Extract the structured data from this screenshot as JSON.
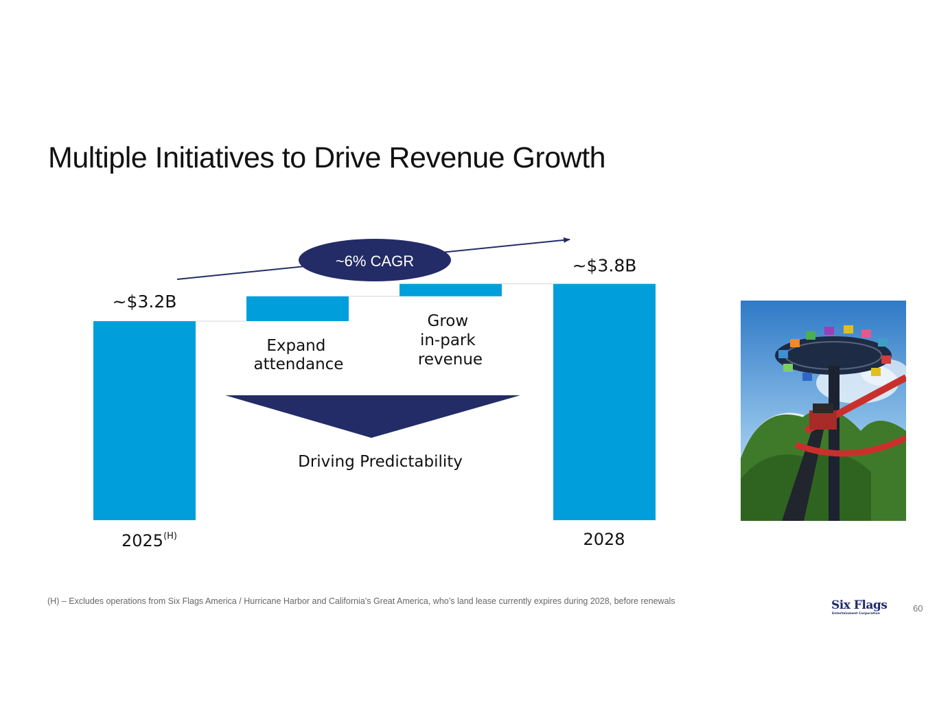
{
  "title": "Multiple Initiatives to Drive Revenue Growth",
  "chart_data": {
    "type": "waterfall",
    "unit": "$B",
    "categories": [
      "2025",
      "Expand attendance",
      "Grow in-park revenue",
      "2028"
    ],
    "values": [
      3.2,
      0.4,
      0.2,
      3.8
    ],
    "value_kinds": [
      "total",
      "increment",
      "increment",
      "total"
    ],
    "start_labels": [
      "~$3.2B",
      "~$3.8B"
    ],
    "x_labels": [
      {
        "text": "2025",
        "superscript": "(H)"
      },
      {
        "text": "2028",
        "superscript": ""
      }
    ],
    "step_labels": [
      [
        "Expand",
        "attendance"
      ],
      [
        "Grow",
        "in-park",
        "revenue"
      ]
    ],
    "cagr_label": "~6% CAGR",
    "predictability_label": "Driving Predictability",
    "colors": {
      "bar": "#009fdb",
      "navy": "#232c66",
      "connector": "#d6d6d6"
    }
  },
  "footnote": "(H) – Excludes operations from Six Flags America / Hurricane Harbor and California’s Great America, who’s land lease currently expires during 2028, before renewals",
  "logo": {
    "name": "Six Flags",
    "subtitle": "Entertainment Corporation"
  },
  "page_number": "60"
}
